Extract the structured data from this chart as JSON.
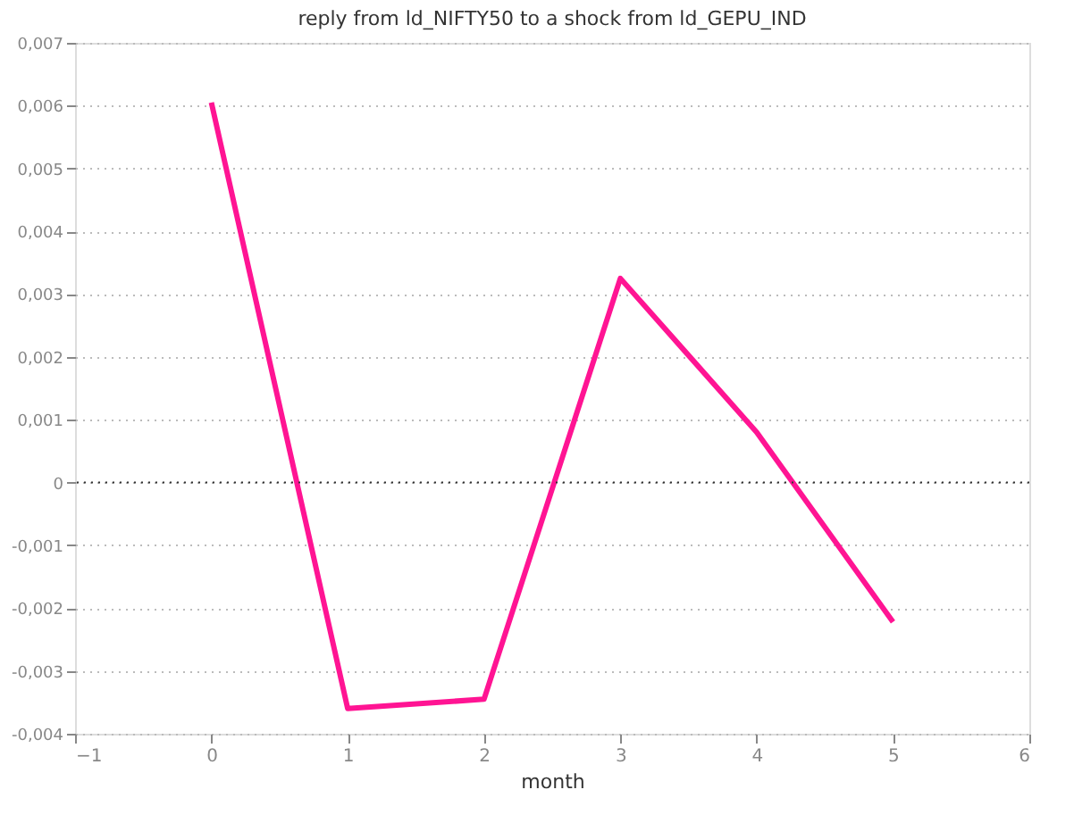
{
  "chart_data": {
    "type": "line",
    "title": "reply from ld_NIFTY50 to a shock from ld_GEPU_IND",
    "xlabel": "month",
    "x": [
      0,
      1,
      2,
      3,
      4,
      5
    ],
    "series": [
      {
        "color": "#ff1493",
        "values": [
          0.00605,
          -0.0036,
          -0.00345,
          0.00325,
          0.0008,
          -0.00222
        ]
      }
    ],
    "xlim": [
      -1,
      6
    ],
    "xticks": [
      -1,
      0,
      1,
      2,
      3,
      4,
      5,
      6
    ],
    "ylim": [
      -0.004,
      0.007
    ],
    "yticks": [
      {
        "value": -0.004,
        "label": "-0,004"
      },
      {
        "value": -0.003,
        "label": "-0,003"
      },
      {
        "value": -0.002,
        "label": "-0,002"
      },
      {
        "value": -0.001,
        "label": "-0,001"
      },
      {
        "value": 0,
        "label": "0"
      },
      {
        "value": 0.001,
        "label": "0,001"
      },
      {
        "value": 0.002,
        "label": "0,002"
      },
      {
        "value": 0.003,
        "label": "0,003"
      },
      {
        "value": 0.004,
        "label": "0,004"
      },
      {
        "value": 0.005,
        "label": "0,005"
      },
      {
        "value": 0.006,
        "label": "0,006"
      },
      {
        "value": 0.007,
        "label": "0,007"
      }
    ],
    "grid": "y",
    "line_style": "solid",
    "marker": "none",
    "ref_lines": [
      {
        "axis": "y",
        "value": 0,
        "label": null,
        "color": "#333333",
        "line_style": "dotted"
      }
    ]
  }
}
